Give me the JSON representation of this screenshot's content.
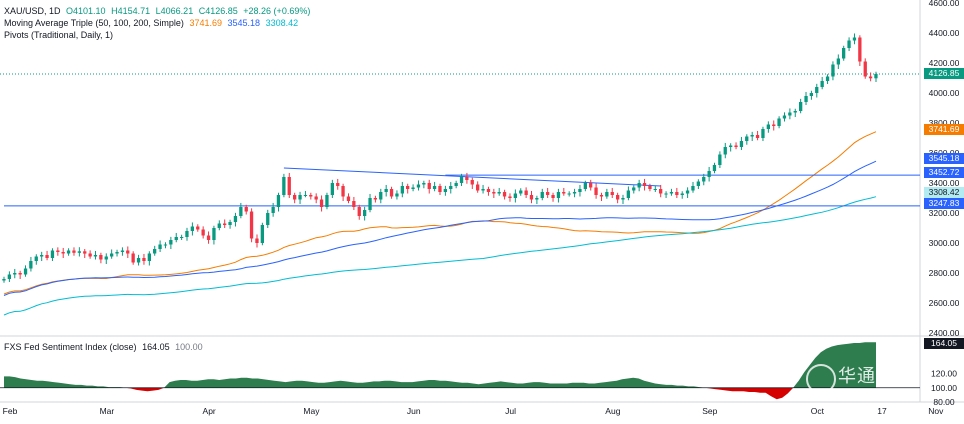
{
  "header": {
    "symbol": "XAU/USD, 1D",
    "open": "O4101.10",
    "high": "H4154.71",
    "low": "L4066.21",
    "close": "C4126.85",
    "change": "+28.26 (+0.69%)",
    "ma_title": "Moving Average Triple (50, 100, 200, Simple)",
    "ma50": "3741.69",
    "ma100": "3545.18",
    "ma200": "3308.42",
    "pivots_title": "Pivots (Traditional, Daily, 1)"
  },
  "price_tags": {
    "last": "4126.85",
    "ma50": "3741.69",
    "ma100": "3545.18",
    "level1": "3452.72",
    "ma200": "3308.42",
    "level2": "3247.83"
  },
  "indicator": {
    "title": "FXS Fed Sentiment Index (close)",
    "value": "164.05",
    "ref": "100.00",
    "tag_value": "164.05",
    "axis_ticks": [
      "120.00",
      "100.00",
      "80.00"
    ]
  },
  "watermark": "华通白银",
  "colors": {
    "up": "#089981",
    "down": "#f23645",
    "ma50": "#f57c00",
    "ma100": "#2962ff",
    "ma200": "#00bcd4",
    "indicator_fill": "#2e7d4f",
    "indicator_neg": "#d50000"
  },
  "chart_data": [
    {
      "type": "candlestick",
      "x_axis_labels": [
        "Feb",
        "Mar",
        "Apr",
        "May",
        "Jun",
        "Jul",
        "Aug",
        "Sep",
        "Oct",
        "17",
        "Nov"
      ],
      "y_ticks": [
        2400,
        2600,
        2800,
        3000,
        3200,
        3400,
        3600,
        3800,
        4000,
        4200,
        4400,
        4600
      ],
      "ylim": [
        2380,
        4620
      ],
      "last_price": 4126.85,
      "moving_averages": [
        {
          "name": "MA50",
          "last": 3741.69
        },
        {
          "name": "MA100",
          "last": 3545.18
        },
        {
          "name": "MA200",
          "last": 3308.42
        }
      ],
      "horizontal_levels": [
        3452.72,
        3247.83
      ],
      "series_closes": [
        2760,
        2790,
        2800,
        2790,
        2830,
        2880,
        2910,
        2920,
        2900,
        2950,
        2940,
        2930,
        2950,
        2935,
        2945,
        2930,
        2910,
        2920,
        2890,
        2910,
        2930,
        2940,
        2950,
        2930,
        2870,
        2900,
        2880,
        2930,
        2960,
        2990,
        2990,
        3020,
        3040,
        3040,
        3080,
        3110,
        3090,
        3050,
        3020,
        3100,
        3130,
        3120,
        3140,
        3180,
        3240,
        3210,
        3030,
        3000,
        3120,
        3200,
        3240,
        3320,
        3440,
        3320,
        3290,
        3320,
        3320,
        3310,
        3290,
        3240,
        3320,
        3400,
        3380,
        3310,
        3280,
        3240,
        3180,
        3220,
        3300,
        3290,
        3340,
        3360,
        3310,
        3330,
        3380,
        3360,
        3370,
        3390,
        3400,
        3360,
        3380,
        3340,
        3360,
        3380,
        3400,
        3440,
        3420,
        3390,
        3350,
        3360,
        3340,
        3330,
        3340,
        3310,
        3300,
        3330,
        3350,
        3320,
        3290,
        3300,
        3340,
        3320,
        3300,
        3340,
        3330,
        3330,
        3340,
        3360,
        3400,
        3370,
        3320,
        3310,
        3340,
        3320,
        3290,
        3300,
        3350,
        3370,
        3400,
        3380,
        3360,
        3360,
        3330,
        3330,
        3340,
        3320,
        3330,
        3350,
        3380,
        3410,
        3440,
        3480,
        3520,
        3590,
        3640,
        3650,
        3640,
        3680,
        3710,
        3720,
        3700,
        3760,
        3790,
        3780,
        3830,
        3850,
        3870,
        3880,
        3940,
        3980,
        4000,
        4040,
        4080,
        4110,
        4190,
        4230,
        4300,
        4350,
        4370,
        4210,
        4110,
        4098,
        4126.85
      ]
    },
    {
      "type": "area",
      "title": "FXS Fed Sentiment Index (close)",
      "last": 164.05,
      "reference": 100.0,
      "ylim": [
        80,
        170
      ],
      "values": [
        116,
        116,
        115,
        113,
        112,
        111,
        110,
        110,
        109,
        108,
        107,
        106,
        105,
        104,
        104,
        103,
        103,
        102,
        102,
        101,
        101,
        101,
        100,
        99,
        97,
        96,
        95,
        96,
        97,
        100,
        108,
        110,
        111,
        111,
        110,
        110,
        111,
        112,
        112,
        111,
        112,
        113,
        113,
        114,
        114,
        113,
        113,
        112,
        111,
        110,
        109,
        108,
        109,
        110,
        110,
        109,
        108,
        107,
        107,
        108,
        109,
        110,
        109,
        108,
        107,
        107,
        108,
        109,
        109,
        110,
        110,
        109,
        108,
        108,
        108,
        109,
        110,
        111,
        111,
        110,
        110,
        109,
        108,
        107,
        107,
        106,
        105,
        106,
        107,
        108,
        109,
        108,
        107,
        106,
        106,
        107,
        108,
        108,
        107,
        106,
        106,
        106,
        106,
        107,
        107,
        107,
        106,
        106,
        107,
        108,
        109,
        110,
        112,
        113,
        114,
        113,
        110,
        108,
        106,
        105,
        104,
        104,
        103,
        103,
        102,
        102,
        101,
        100,
        99,
        98,
        97,
        96,
        95,
        95,
        95,
        94,
        94,
        93,
        93,
        88,
        84,
        86,
        92,
        100,
        110,
        122,
        132,
        142,
        150,
        155,
        158,
        160,
        161,
        162,
        163,
        163,
        164,
        164,
        164.05
      ]
    }
  ]
}
